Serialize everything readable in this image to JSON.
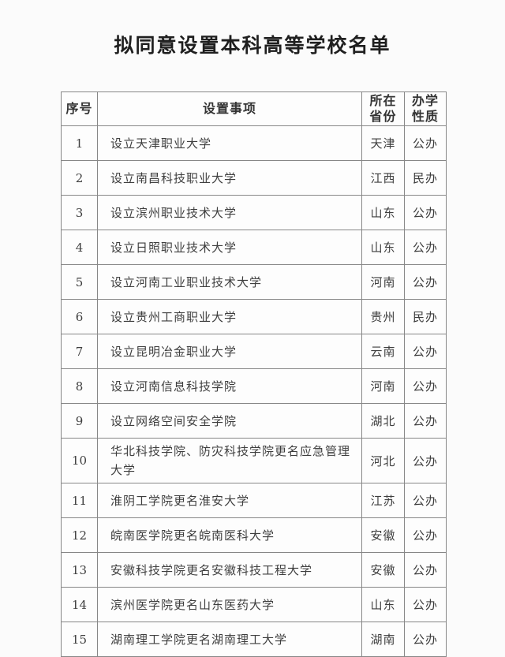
{
  "page": {
    "title": "拟同意设置本科高等学校名单"
  },
  "table": {
    "headers": [
      {
        "id": "no",
        "label": "序号"
      },
      {
        "id": "item",
        "label": "设置事项"
      },
      {
        "id": "province",
        "label": "所在\n省份"
      },
      {
        "id": "nature",
        "label": "办学\n性质"
      }
    ],
    "rows": [
      {
        "no": "1",
        "item": "设立天津职业大学",
        "province": "天津",
        "nature": "公办"
      },
      {
        "no": "2",
        "item": "设立南昌科技职业大学",
        "province": "江西",
        "nature": "民办"
      },
      {
        "no": "3",
        "item": "设立滨州职业技术大学",
        "province": "山东",
        "nature": "公办"
      },
      {
        "no": "4",
        "item": "设立日照职业技术大学",
        "province": "山东",
        "nature": "公办"
      },
      {
        "no": "5",
        "item": "设立河南工业职业技术大学",
        "province": "河南",
        "nature": "公办"
      },
      {
        "no": "6",
        "item": "设立贵州工商职业大学",
        "province": "贵州",
        "nature": "民办"
      },
      {
        "no": "7",
        "item": "设立昆明冶金职业大学",
        "province": "云南",
        "nature": "公办"
      },
      {
        "no": "8",
        "item": "设立河南信息科技学院",
        "province": "河南",
        "nature": "公办"
      },
      {
        "no": "9",
        "item": "设立网络空间安全学院",
        "province": "湖北",
        "nature": "公办"
      },
      {
        "no": "10",
        "item": "华北科技学院、防灾科技学院更名应急管理大学",
        "province": "河北",
        "nature": "公办"
      },
      {
        "no": "11",
        "item": "淮阴工学院更名淮安大学",
        "province": "江苏",
        "nature": "公办"
      },
      {
        "no": "12",
        "item": "皖南医学院更名皖南医科大学",
        "province": "安徽",
        "nature": "公办"
      },
      {
        "no": "13",
        "item": "安徽科技学院更名安徽科技工程大学",
        "province": "安徽",
        "nature": "公办"
      },
      {
        "no": "14",
        "item": "滨州医学院更名山东医药大学",
        "province": "山东",
        "nature": "公办"
      },
      {
        "no": "15",
        "item": "湖南理工学院更名湖南理工大学",
        "province": "湖南",
        "nature": "公办"
      }
    ]
  },
  "colors": {
    "page_bg": "#fbfbfb",
    "cell_bg": "#fdfdfd",
    "border": "#878787",
    "body_text": "#3e3e3e",
    "title_text": "#1f1f1f"
  }
}
